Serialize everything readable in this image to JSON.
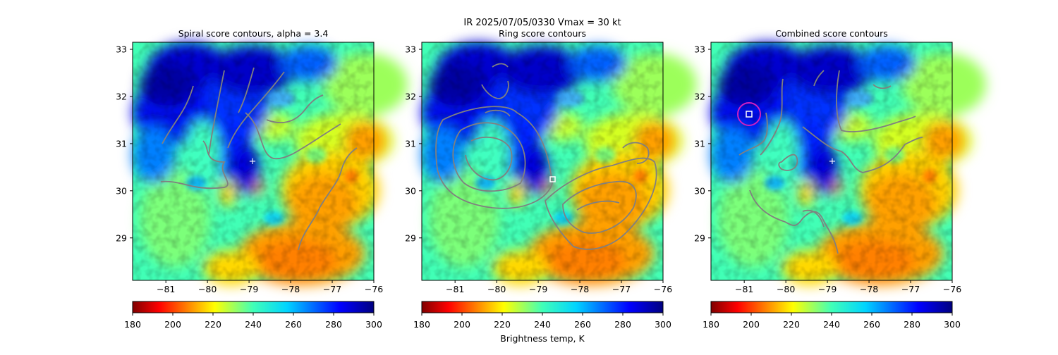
{
  "figure": {
    "suptitle_line1": "IR  2025/07/05/0330    Vmax = 30 kt",
    "colorbar_label": "Brightness temp, K"
  },
  "chart_data": [
    {
      "type": "heatmap",
      "title": "Spiral score contours, alpha =  3.4",
      "x_ticks": [
        -81,
        -80,
        -79,
        -78,
        -77,
        -76
      ],
      "y_ticks": [
        29,
        30,
        31,
        32,
        33
      ],
      "xlim": [
        -81.8,
        -76.0
      ],
      "ylim": [
        28.1,
        33.15
      ],
      "center_marker": {
        "x": -78.9,
        "y": 30.6,
        "symbol": "+"
      },
      "colorbar": {
        "ticks": [
          180,
          200,
          220,
          240,
          260,
          280,
          300
        ],
        "range": [
          180,
          300
        ]
      }
    },
    {
      "type": "heatmap",
      "title": "Ring score contours",
      "x_ticks": [
        -81,
        -80,
        -79,
        -78,
        -77,
        -76
      ],
      "y_ticks": [
        29,
        30,
        31,
        32,
        33
      ],
      "xlim": [
        -81.8,
        -76.0
      ],
      "ylim": [
        28.1,
        33.15
      ],
      "square_marker": {
        "x": -78.6,
        "y": 30.25
      },
      "colorbar": {
        "ticks": [
          180,
          200,
          220,
          240,
          260,
          280,
          300
        ],
        "range": [
          180,
          300
        ]
      }
    },
    {
      "type": "heatmap",
      "title": "Combined score contours",
      "x_ticks": [
        -81,
        -80,
        -79,
        -78,
        -77,
        -76
      ],
      "y_ticks": [
        29,
        30,
        31,
        32,
        33
      ],
      "xlim": [
        -81.8,
        -76.0
      ],
      "ylim": [
        28.1,
        33.15
      ],
      "center_marker": {
        "x": -78.9,
        "y": 30.6,
        "symbol": "+"
      },
      "square_marker": {
        "x": -80.9,
        "y": 31.6
      },
      "circle_marker": {
        "x": -80.9,
        "y": 31.6,
        "color": "#d020c0"
      },
      "colorbar": {
        "ticks": [
          180,
          200,
          220,
          240,
          260,
          280,
          300
        ],
        "range": [
          180,
          300
        ]
      }
    }
  ]
}
